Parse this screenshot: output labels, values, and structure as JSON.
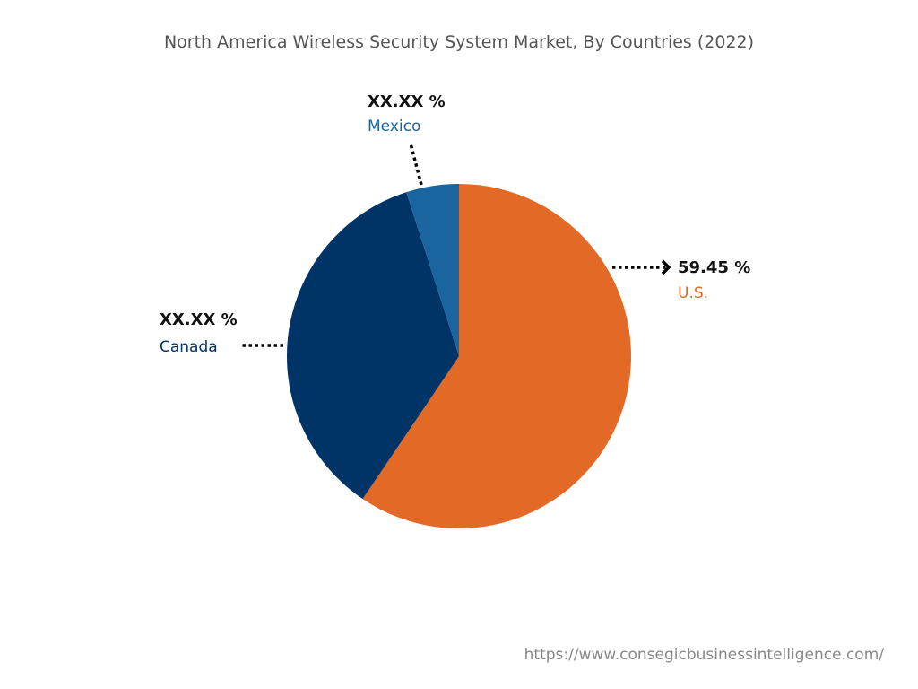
{
  "chart_data": {
    "type": "pie",
    "title": "North America Wireless Security System Market, By Countries (2022)",
    "slices": [
      {
        "name": "U.S.",
        "value": 59.45,
        "label": "59.45 %",
        "color": "#E36926"
      },
      {
        "name": "Canada",
        "value": 35.6,
        "label": "XX.XX %",
        "color": "#003366"
      },
      {
        "name": "Mexico",
        "value": 4.95,
        "label": "XX.XX %",
        "color": "#1A65A0"
      }
    ],
    "start_angle": "12 o'clock, clockwise"
  },
  "source": "https://www.consegicbusinessintelligence.com/"
}
